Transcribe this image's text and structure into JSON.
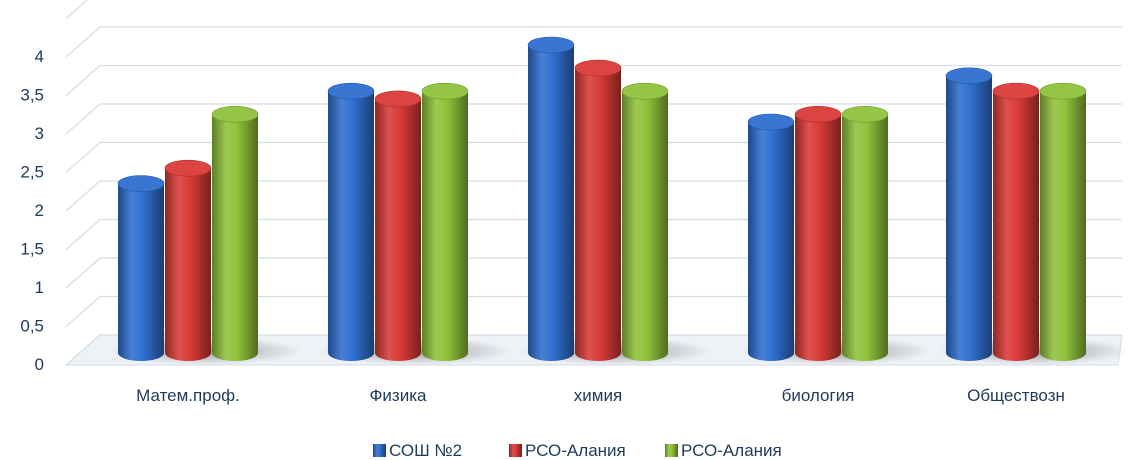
{
  "chart_data": {
    "type": "bar",
    "style": "3d-cylinder",
    "categories": [
      "Матем.проф.",
      "Физика",
      "химия",
      "биология",
      "Обществозн"
    ],
    "series": [
      {
        "name": "СОШ №2",
        "color": "#2f6fd0",
        "values": [
          2.2,
          3.4,
          4.0,
          3.0,
          3.6
        ]
      },
      {
        "name": "РСО-Алания",
        "color": "#d93a36",
        "values": [
          2.4,
          3.3,
          3.7,
          3.1,
          3.4
        ]
      },
      {
        "name": "РСО-Алания",
        "color": "#8fc23a",
        "values": [
          3.1,
          3.4,
          3.4,
          3.1,
          3.4
        ]
      }
    ],
    "y_ticks": [
      "0",
      "0,5",
      "1",
      "1,5",
      "2",
      "2,5",
      "3",
      "3,5",
      "4"
    ],
    "ylim": [
      0,
      4.5
    ],
    "grid": true,
    "legend_position": "bottom"
  }
}
